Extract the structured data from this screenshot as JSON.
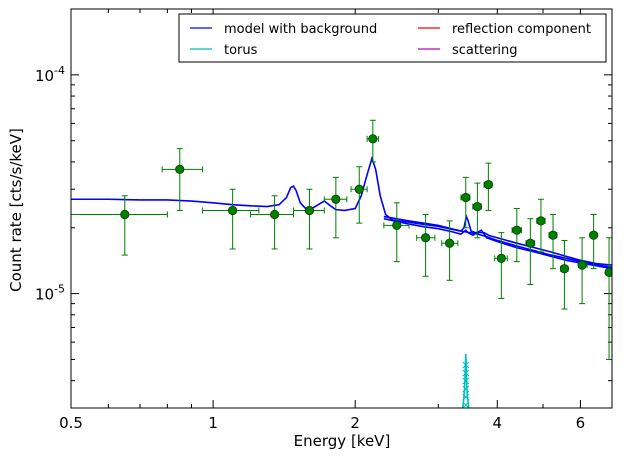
{
  "chart_data": {
    "type": "line",
    "xlabel": "Energy [keV]",
    "ylabel": "Count rate [cts/s/keV]",
    "x_scale": "log",
    "y_scale": "log",
    "xlim": [
      0.5,
      7.0
    ],
    "ylim": [
      3e-06,
      0.0002
    ],
    "x_ticks": [
      {
        "value": 0.5,
        "label": "0.5"
      },
      {
        "value": 1,
        "label": "1"
      },
      {
        "value": 2,
        "label": "2"
      },
      {
        "value": 4,
        "label": "4"
      },
      {
        "value": 6,
        "label": "6"
      }
    ],
    "y_ticks": [
      {
        "value": 1e-05,
        "base": "10",
        "exp": "-5"
      },
      {
        "value": 0.0001,
        "base": "10",
        "exp": "-4"
      }
    ],
    "legend": {
      "placement": "top-right",
      "columns": 2,
      "entries": [
        {
          "name": "model with background",
          "color": "#0000ff"
        },
        {
          "name": "reflection component",
          "color": "#ff0000"
        },
        {
          "name": "torus",
          "color": "#00bfbf"
        },
        {
          "name": "scattering",
          "color": "#bf00bf"
        }
      ]
    },
    "data_points": {
      "color": "#007f00",
      "points": [
        {
          "x": 0.65,
          "xlo": 0.5,
          "xhi": 0.8,
          "y": 2.3e-05,
          "ylo": 1.5e-05,
          "yhi": 2.8e-05
        },
        {
          "x": 0.85,
          "xlo": 0.78,
          "xhi": 0.95,
          "y": 3.7e-05,
          "ylo": 2.4e-05,
          "yhi": 4.6e-05
        },
        {
          "x": 1.1,
          "xlo": 0.95,
          "xhi": 1.25,
          "y": 2.4e-05,
          "ylo": 1.6e-05,
          "yhi": 3e-05
        },
        {
          "x": 1.35,
          "xlo": 1.2,
          "xhi": 1.48,
          "y": 2.3e-05,
          "ylo": 1.6e-05,
          "yhi": 2.8e-05
        },
        {
          "x": 1.6,
          "xlo": 1.48,
          "xhi": 1.72,
          "y": 2.4e-05,
          "ylo": 1.6e-05,
          "yhi": 3e-05
        },
        {
          "x": 1.82,
          "xlo": 1.72,
          "xhi": 1.92,
          "y": 2.7e-05,
          "ylo": 1.8e-05,
          "yhi": 3.4e-05
        },
        {
          "x": 2.04,
          "xlo": 1.96,
          "xhi": 2.12,
          "y": 3e-05,
          "ylo": 2.1e-05,
          "yhi": 3.8e-05
        },
        {
          "x": 2.18,
          "xlo": 2.12,
          "xhi": 2.24,
          "y": 5.1e-05,
          "ylo": 4e-05,
          "yhi": 6.2e-05
        },
        {
          "x": 2.45,
          "xlo": 2.3,
          "xhi": 2.6,
          "y": 2.05e-05,
          "ylo": 1.4e-05,
          "yhi": 2.6e-05
        },
        {
          "x": 2.82,
          "xlo": 2.7,
          "xhi": 2.95,
          "y": 1.8e-05,
          "ylo": 1.2e-05,
          "yhi": 2.3e-05
        },
        {
          "x": 3.17,
          "xlo": 3.05,
          "xhi": 3.3,
          "y": 1.7e-05,
          "ylo": 1.15e-05,
          "yhi": 2.15e-05
        },
        {
          "x": 3.43,
          "xlo": 3.35,
          "xhi": 3.5,
          "y": 2.75e-05,
          "ylo": 2e-05,
          "yhi": 3.4e-05
        },
        {
          "x": 3.63,
          "xlo": 3.55,
          "xhi": 3.7,
          "y": 2.5e-05,
          "ylo": 1.8e-05,
          "yhi": 3.2e-05
        },
        {
          "x": 3.83,
          "xlo": 3.75,
          "xhi": 3.9,
          "y": 3.15e-05,
          "ylo": 2.4e-05,
          "yhi": 3.95e-05
        },
        {
          "x": 4.08,
          "xlo": 3.95,
          "xhi": 4.2,
          "y": 1.45e-05,
          "ylo": 9.5e-06,
          "yhi": 1.9e-05
        },
        {
          "x": 4.4,
          "xlo": 4.3,
          "xhi": 4.5,
          "y": 1.95e-05,
          "ylo": 1.4e-05,
          "yhi": 2.45e-05
        },
        {
          "x": 4.7,
          "xlo": 4.6,
          "xhi": 4.8,
          "y": 1.7e-05,
          "ylo": 1.1e-05,
          "yhi": 2.2e-05
        },
        {
          "x": 4.95,
          "xlo": 4.85,
          "xhi": 5.05,
          "y": 2.15e-05,
          "ylo": 1.55e-05,
          "yhi": 2.7e-05
        },
        {
          "x": 5.25,
          "xlo": 5.15,
          "xhi": 5.35,
          "y": 1.85e-05,
          "ylo": 1.3e-05,
          "yhi": 2.3e-05
        },
        {
          "x": 5.55,
          "xlo": 5.45,
          "xhi": 5.65,
          "y": 1.3e-05,
          "ylo": 8.5e-06,
          "yhi": 1.75e-05
        },
        {
          "x": 6.05,
          "xlo": 5.95,
          "xhi": 6.2,
          "y": 1.35e-05,
          "ylo": 9e-06,
          "yhi": 1.8e-05
        },
        {
          "x": 6.4,
          "xlo": 6.3,
          "xhi": 6.5,
          "y": 1.85e-05,
          "ylo": 1.3e-05,
          "yhi": 2.3e-05
        },
        {
          "x": 6.9,
          "xlo": 6.8,
          "xhi": 7.0,
          "y": 1.25e-05,
          "ylo": 5e-06,
          "yhi": 1.8e-05
        }
      ]
    },
    "model_curves": [
      {
        "name": "model with background",
        "color": "#0000ff",
        "points": [
          [
            0.5,
            2.7e-05
          ],
          [
            0.6,
            2.7e-05
          ],
          [
            0.7,
            2.68e-05
          ],
          [
            0.8,
            2.68e-05
          ],
          [
            0.9,
            2.65e-05
          ],
          [
            1.0,
            2.6e-05
          ],
          [
            1.1,
            2.55e-05
          ],
          [
            1.2,
            2.52e-05
          ],
          [
            1.3,
            2.5e-05
          ],
          [
            1.38,
            2.55e-05
          ],
          [
            1.43,
            2.75e-05
          ],
          [
            1.46,
            3.05e-05
          ],
          [
            1.48,
            3.1e-05
          ],
          [
            1.5,
            2.95e-05
          ],
          [
            1.53,
            2.6e-05
          ],
          [
            1.57,
            2.45e-05
          ],
          [
            1.62,
            2.45e-05
          ],
          [
            1.67,
            2.55e-05
          ],
          [
            1.72,
            2.65e-05
          ],
          [
            1.76,
            2.55e-05
          ],
          [
            1.82,
            2.42e-05
          ],
          [
            1.9,
            2.4e-05
          ],
          [
            2.0,
            2.45e-05
          ],
          [
            2.06,
            2.8e-05
          ],
          [
            2.12,
            3.5e-05
          ],
          [
            2.17,
            4.15e-05
          ],
          [
            2.21,
            3.7e-05
          ],
          [
            2.26,
            2.8e-05
          ],
          [
            2.32,
            2.3e-05
          ],
          [
            2.4,
            2.17e-05
          ],
          [
            2.6,
            2.12e-05
          ],
          [
            2.8,
            2.07e-05
          ],
          [
            3.0,
            2.03e-05
          ],
          [
            3.2,
            1.97e-05
          ],
          [
            3.35,
            1.93e-05
          ],
          [
            3.4,
            2e-05
          ],
          [
            3.44,
            2.25e-05
          ],
          [
            3.47,
            2.15e-05
          ],
          [
            3.52,
            1.93e-05
          ],
          [
            3.6,
            1.9e-05
          ],
          [
            3.75,
            1.9e-05
          ],
          [
            3.85,
            1.84e-05
          ],
          [
            4.0,
            1.8e-05
          ],
          [
            4.4,
            1.7e-05
          ],
          [
            4.8,
            1.62e-05
          ],
          [
            5.2,
            1.55e-05
          ],
          [
            5.6,
            1.48e-05
          ],
          [
            6.0,
            1.42e-05
          ],
          [
            6.5,
            1.37e-05
          ],
          [
            7.0,
            1.35e-05
          ]
        ]
      },
      {
        "name": "model with background",
        "color": "#0000ff",
        "points": [
          [
            2.3,
            2.25e-05
          ],
          [
            2.6,
            2.15e-05
          ],
          [
            2.8,
            2.1e-05
          ],
          [
            3.0,
            2.05e-05
          ],
          [
            3.2,
            1.98e-05
          ],
          [
            3.4,
            1.92e-05
          ],
          [
            3.6,
            1.88e-05
          ],
          [
            3.8,
            1.82e-05
          ],
          [
            4.0,
            1.75e-05
          ],
          [
            4.4,
            1.65e-05
          ],
          [
            4.8,
            1.57e-05
          ],
          [
            5.2,
            1.5e-05
          ],
          [
            5.6,
            1.45e-05
          ],
          [
            6.0,
            1.4e-05
          ],
          [
            6.5,
            1.35e-05
          ],
          [
            7.0,
            1.32e-05
          ]
        ]
      },
      {
        "name": "model with background",
        "color": "#0000ff",
        "points": [
          [
            2.3,
            2.2e-05
          ],
          [
            2.6,
            2.08e-05
          ],
          [
            2.8,
            2.02e-05
          ],
          [
            3.0,
            1.98e-05
          ],
          [
            3.2,
            1.92e-05
          ],
          [
            3.35,
            1.87e-05
          ],
          [
            3.43,
            1.95e-05
          ],
          [
            3.47,
            1.9e-05
          ],
          [
            3.55,
            1.85e-05
          ],
          [
            3.7,
            1.95e-05
          ],
          [
            3.8,
            1.8e-05
          ],
          [
            4.0,
            1.73e-05
          ],
          [
            4.4,
            1.62e-05
          ],
          [
            4.8,
            1.55e-05
          ],
          [
            5.2,
            1.48e-05
          ],
          [
            5.6,
            1.42e-05
          ],
          [
            6.0,
            1.38e-05
          ],
          [
            6.5,
            1.34e-05
          ],
          [
            7.0,
            1.3e-05
          ]
        ]
      },
      {
        "name": "torus",
        "color": "#00bfbf",
        "points": [
          [
            3.38,
            3e-06
          ],
          [
            3.41,
            3.6e-06
          ],
          [
            3.43,
            5.3e-06
          ],
          [
            3.45,
            3.6e-06
          ],
          [
            3.48,
            3e-06
          ]
        ]
      }
    ]
  }
}
